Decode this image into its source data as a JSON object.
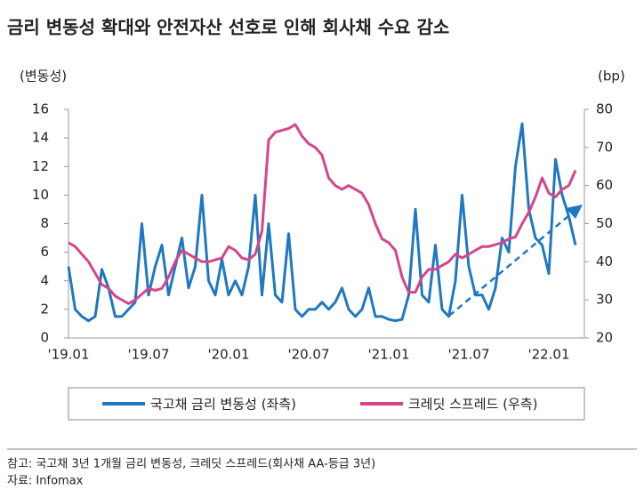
{
  "chart_data": {
    "type": "line",
    "title": "금리 변동성 확대와 안전자산 선호로 인해 회사채 수요 감소",
    "y_label": "(변동성)",
    "y2_label": "(bp)",
    "categories": [
      "'19.01",
      null,
      null,
      null,
      null,
      null,
      null,
      null,
      null,
      null,
      null,
      null,
      "'19.07",
      null,
      null,
      null,
      null,
      null,
      null,
      null,
      null,
      null,
      null,
      null,
      "'20.01",
      null,
      null,
      null,
      null,
      null,
      null,
      null,
      null,
      null,
      null,
      null,
      "'20.07",
      null,
      null,
      null,
      null,
      null,
      null,
      null,
      null,
      null,
      null,
      null,
      "'21.01",
      null,
      null,
      null,
      null,
      null,
      null,
      null,
      null,
      null,
      null,
      null,
      "'21.07",
      null,
      null,
      null,
      null,
      null,
      null,
      null,
      null,
      null,
      null,
      null,
      "'22.01",
      null,
      null,
      null,
      null
    ],
    "series": [
      {
        "name": "국고채 금리 변동성 (좌측)",
        "color": "#1f78c1",
        "values": [
          5,
          2,
          1.5,
          1.2,
          1.5,
          4.8,
          3.5,
          1.5,
          1.5,
          2,
          2.5,
          8,
          3,
          5,
          6.5,
          3,
          5,
          7,
          3.5,
          5,
          10,
          4,
          3,
          5.5,
          3,
          4,
          3,
          5,
          10,
          3,
          8,
          3,
          2.5,
          7.3,
          2,
          1.5,
          2,
          2,
          2.5,
          2,
          2.5,
          3.5,
          2,
          1.5,
          2,
          3.5,
          1.5,
          1.5,
          1.3,
          1.2,
          1.3,
          3,
          9,
          3,
          2.5,
          6.5,
          2,
          1.5,
          4,
          10,
          5,
          3,
          3,
          2,
          3.5,
          7,
          6,
          12,
          15,
          9,
          7,
          6.5,
          4.5,
          12.5,
          10,
          8.5,
          6.5
        ]
      },
      {
        "name": "크레딧 스프레드 (우측)",
        "color": "#d6458a",
        "axis": "y2",
        "values": [
          45,
          44,
          42,
          40,
          37,
          34,
          33,
          31,
          30,
          29,
          30,
          31.5,
          33,
          32.5,
          33,
          36,
          40,
          43,
          42,
          41,
          40,
          40,
          40.5,
          41,
          44,
          43,
          41,
          40.5,
          42,
          48,
          72,
          74,
          74.5,
          75,
          76,
          73,
          71,
          70,
          68,
          62,
          60,
          59,
          60,
          59,
          58,
          55,
          50,
          46,
          45,
          43,
          36,
          32,
          32,
          36,
          38,
          38,
          39,
          40,
          42,
          41,
          42,
          43,
          44,
          44,
          44.5,
          45,
          46,
          46.5,
          50,
          53,
          57,
          62,
          58,
          57,
          59,
          60,
          64
        ]
      }
    ],
    "ylim": [
      0,
      16
    ],
    "yticks": [
      0,
      2,
      4,
      6,
      8,
      10,
      12,
      14,
      16
    ],
    "y2lim": [
      20,
      80
    ],
    "y2ticks": [
      20,
      30,
      40,
      50,
      60,
      70,
      80
    ],
    "notes": [
      "참고: 국고채 3년 1개월 금리 변동성, 크레딧 스프레드(회사채 AA-등급 3년)",
      "자료: Infomax"
    ]
  }
}
